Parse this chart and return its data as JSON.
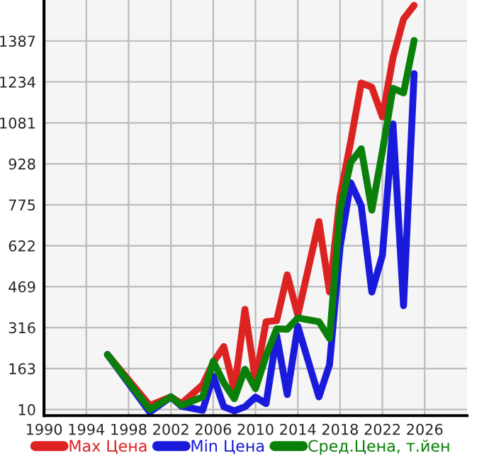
{
  "chart_data": {
    "type": "line",
    "x": [
      1996,
      2000,
      2002,
      2003,
      2005,
      2006,
      2007,
      2008,
      2009,
      2010,
      2011,
      2012,
      2013,
      2014,
      2016,
      2017,
      2018,
      2019,
      2020,
      2021,
      2022,
      2023,
      2024,
      2025
    ],
    "series": [
      {
        "name": "Max Цена",
        "color": "#dd2222",
        "values": [
          215,
          25,
          57,
          32,
          102,
          185,
          245,
          83,
          384,
          117,
          338,
          342,
          513,
          363,
          712,
          449,
          806,
          1010,
          1230,
          1214,
          1103,
          1324,
          1469,
          1520
        ]
      },
      {
        "name": "Min Цена",
        "color": "#1a1adc",
        "values": [
          215,
          0,
          57,
          22,
          7,
          135,
          20,
          5,
          20,
          56,
          32,
          287,
          66,
          321,
          57,
          177,
          618,
          857,
          771,
          449,
          586,
          1077,
          398,
          1265
        ]
      },
      {
        "name": "Сред.Цена, т.йен",
        "color": "#0a800a",
        "values": [
          215,
          10,
          57,
          25,
          57,
          190,
          110,
          50,
          160,
          88,
          210,
          311,
          310,
          352,
          338,
          275,
          755,
          933,
          984,
          755,
          975,
          1210,
          1193,
          1389
        ]
      }
    ],
    "xlim": [
      1990,
      2030
    ],
    "xticks": [
      1990,
      1994,
      1998,
      2002,
      2006,
      2010,
      2014,
      2018,
      2022,
      2026
    ],
    "ylim": [
      -13,
      1540
    ],
    "yticks": [
      10,
      163,
      316,
      469,
      622,
      775,
      928,
      1081,
      1234,
      1387
    ],
    "grid": true,
    "legend": "bottom"
  }
}
